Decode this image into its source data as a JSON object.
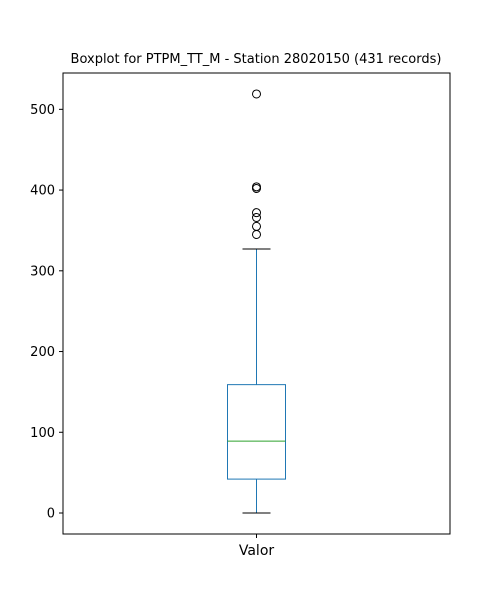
{
  "chart_data": {
    "type": "boxplot",
    "title": "Boxplot for PTPM_TT_M - Station 28020150 (431 records)",
    "xlabel": "",
    "ylabel": "",
    "categories": [
      "Valor"
    ],
    "yticks": [
      0,
      100,
      200,
      300,
      400,
      500
    ],
    "ytick_labels": [
      "0",
      "100",
      "200",
      "300",
      "400",
      "500"
    ],
    "ylim": [
      -26,
      545
    ],
    "grid": false,
    "boxes": [
      {
        "category": "Valor",
        "whisker_low": 0,
        "q1": 42,
        "median": 89,
        "q3": 159,
        "whisker_high": 327,
        "outliers": [
          345,
          355,
          366,
          372,
          402,
          404,
          519
        ]
      }
    ],
    "colors": {
      "box": "#1f77b4",
      "whisker": "#1f77b4",
      "cap": "#000000",
      "median": "#2ca02c",
      "outlier": "#000000"
    }
  }
}
